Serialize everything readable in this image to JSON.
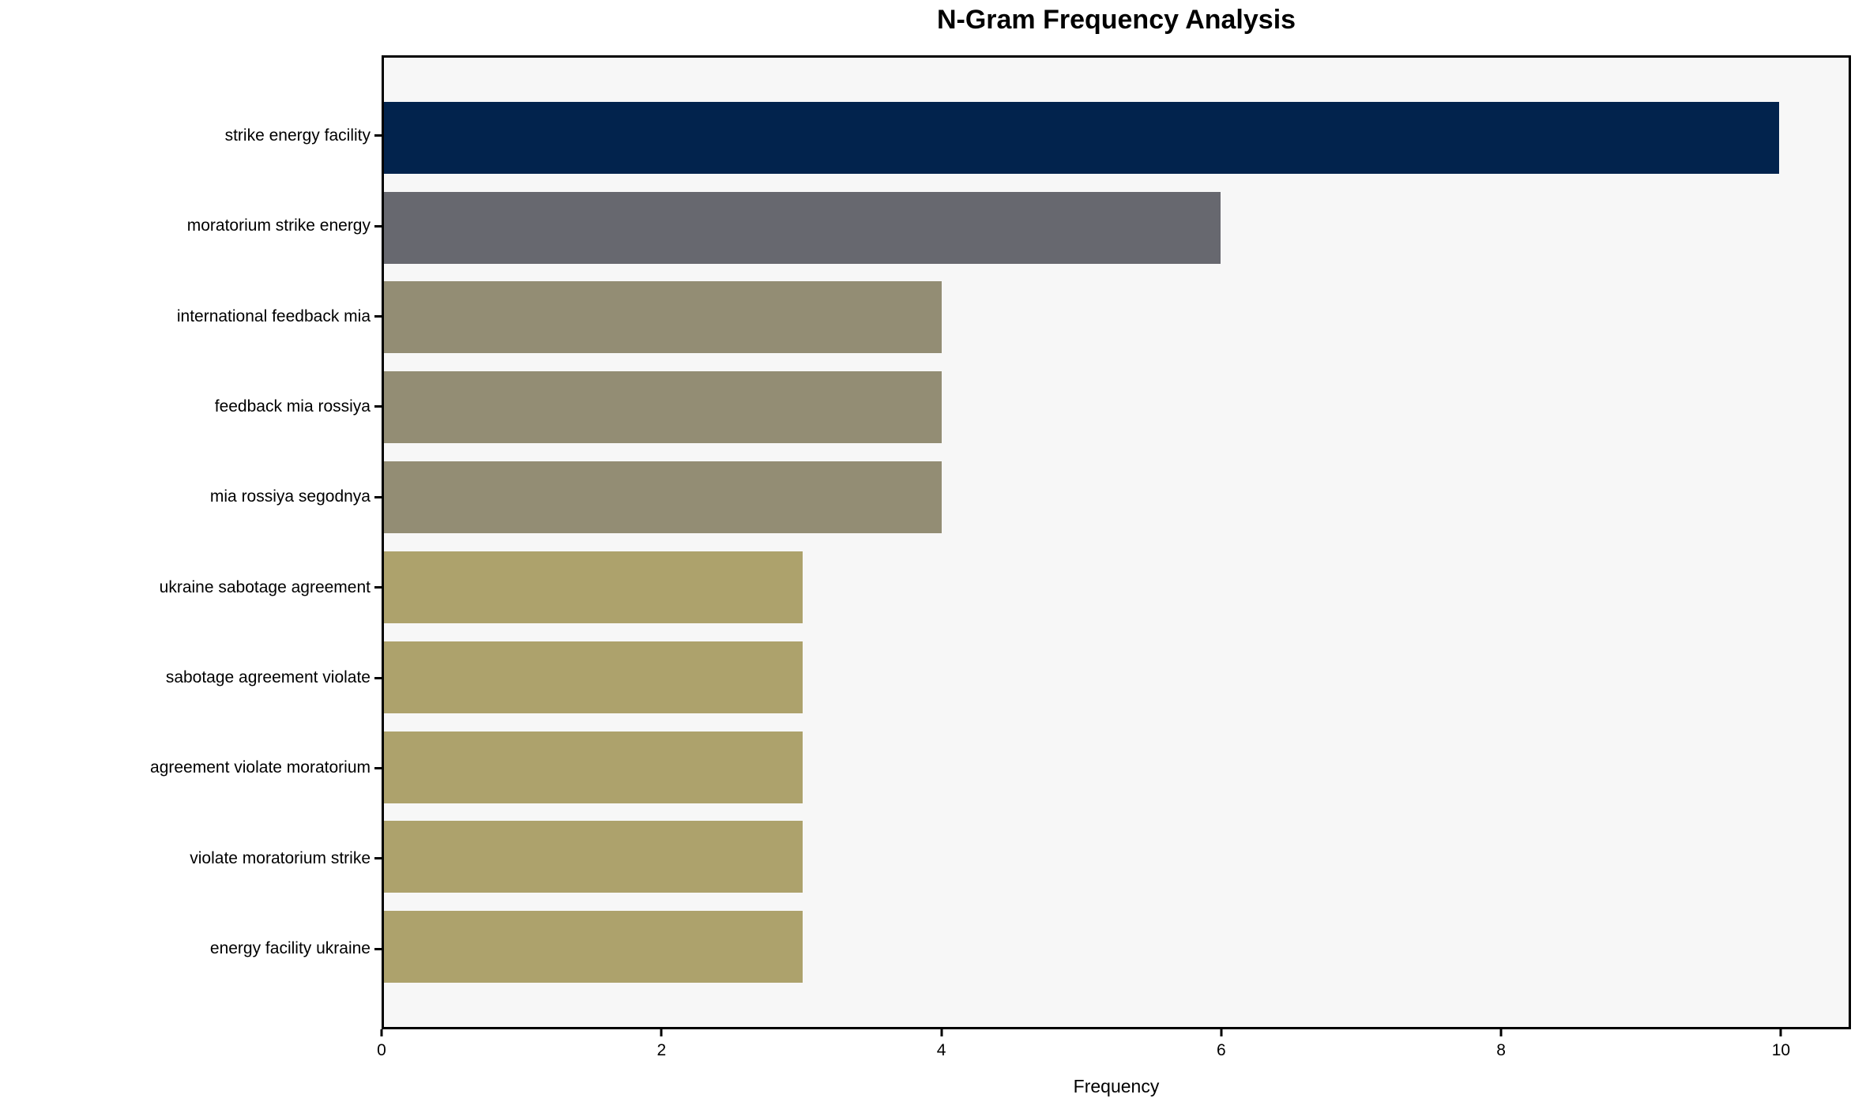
{
  "chart_data": {
    "type": "bar",
    "orientation": "horizontal",
    "title": "N-Gram Frequency Analysis",
    "xlabel": "Frequency",
    "ylabel": "",
    "categories": [
      "strike energy facility",
      "moratorium strike energy",
      "international feedback mia",
      "feedback mia rossiya",
      "mia rossiya segodnya",
      "ukraine sabotage agreement",
      "sabotage agreement violate",
      "agreement violate moratorium",
      "violate moratorium strike",
      "energy facility ukraine"
    ],
    "values": [
      10,
      6,
      4,
      4,
      4,
      3,
      3,
      3,
      3,
      3
    ],
    "bar_colors": [
      "#02234d",
      "#67686f",
      "#938d74",
      "#938d74",
      "#938d74",
      "#ada26c",
      "#ada26c",
      "#ada26c",
      "#ada26c",
      "#ada26c"
    ],
    "xlim": [
      0,
      10.5
    ],
    "xticks": [
      0,
      2,
      4,
      6,
      8,
      10
    ],
    "bar_height_fraction": 0.8,
    "grid": false,
    "legend": null,
    "plot_background": "#f7f7f7",
    "figure_background": "#ffffff",
    "spine_color": "#000000"
  }
}
